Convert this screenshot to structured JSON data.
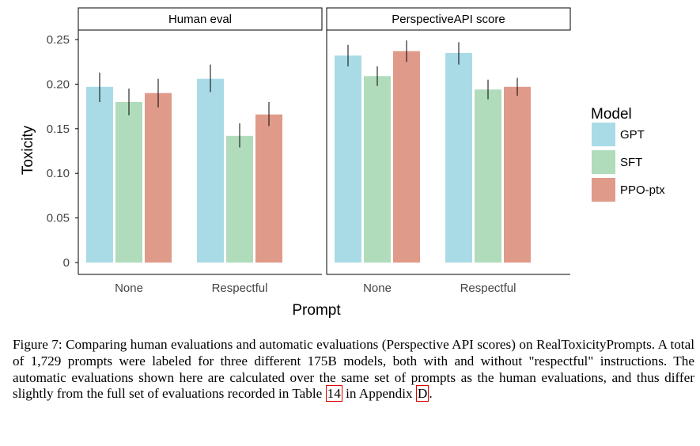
{
  "chart_data": {
    "type": "bar",
    "ylabel": "Toxicity",
    "xlabel": "Prompt",
    "ylim": [
      0,
      0.25
    ],
    "yticks": [
      0,
      0.05,
      0.1,
      0.15,
      0.2,
      0.25
    ],
    "ytick_labels": [
      "0",
      "0.05",
      "0.10",
      "0.15",
      "0.20",
      "0.25"
    ],
    "categories": [
      "None",
      "Respectful"
    ],
    "legend": {
      "title": "Model",
      "position": "right",
      "entries": [
        {
          "label": "GPT",
          "color": "#a9dbe6"
        },
        {
          "label": "SFT",
          "color": "#b0dcbb"
        },
        {
          "label": "PPO-ptx",
          "color": "#e09a8a"
        }
      ]
    },
    "panels": [
      {
        "title": "Human eval",
        "series": [
          {
            "name": "GPT",
            "values": [
              0.197,
              0.206
            ],
            "err_low": [
              0.18,
              0.191
            ],
            "err_high": [
              0.213,
              0.222
            ]
          },
          {
            "name": "SFT",
            "values": [
              0.18,
              0.142
            ],
            "err_low": [
              0.165,
              0.129
            ],
            "err_high": [
              0.195,
              0.156
            ]
          },
          {
            "name": "PPO-ptx",
            "values": [
              0.19,
              0.166
            ],
            "err_low": [
              0.174,
              0.153
            ],
            "err_high": [
              0.206,
              0.18
            ]
          }
        ]
      },
      {
        "title": "PerspectiveAPI score",
        "series": [
          {
            "name": "GPT",
            "values": [
              0.232,
              0.235
            ],
            "err_low": [
              0.22,
              0.222
            ],
            "err_high": [
              0.244,
              0.247
            ]
          },
          {
            "name": "SFT",
            "values": [
              0.209,
              0.194
            ],
            "err_low": [
              0.198,
              0.183
            ],
            "err_high": [
              0.22,
              0.205
            ]
          },
          {
            "name": "PPO-ptx",
            "values": [
              0.237,
              0.197
            ],
            "err_low": [
              0.225,
              0.187
            ],
            "err_high": [
              0.249,
              0.207
            ]
          }
        ]
      }
    ]
  },
  "caption": {
    "text_before_ref1": "Figure 7: Comparing human evaluations and automatic evaluations (Perspective API scores) on RealToxicityPrompts. A total of 1,729 prompts were labeled for three different 175B models, both with and without \"respectful\" instructions. The automatic evaluations shown here are calculated over the same set of prompts as the human evaluations, and thus differ slightly from the full set of evaluations recorded in Table ",
    "ref_table": "14",
    "text_between_refs": " in Appendix ",
    "ref_appendix": "D",
    "text_after": "."
  }
}
